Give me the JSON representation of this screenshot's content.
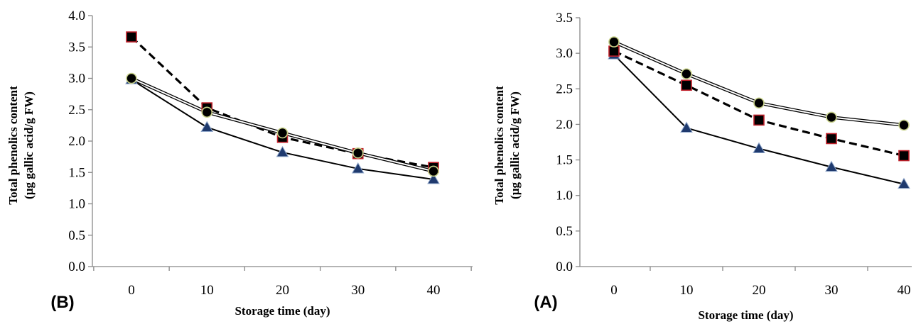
{
  "chart_data": [
    {
      "type": "line",
      "panel_label": "(B)",
      "x": [
        0,
        10,
        20,
        30,
        40
      ],
      "xlabel": "Storage time (day)",
      "ylabel_line1": "Total phenolics content",
      "ylabel_line2": "(µg gallic acid/g FW)",
      "ylim": [
        0,
        4
      ],
      "yticks": [
        "0.0",
        "0.5",
        "1.0",
        "1.5",
        "2.0",
        "2.5",
        "3.0",
        "3.5",
        "4.0"
      ],
      "xticks": [
        "0",
        "10",
        "20",
        "30",
        "40"
      ],
      "grid": false,
      "series": [
        {
          "marker": "triangle",
          "line": "solid",
          "values": [
            2.98,
            2.22,
            1.82,
            1.56,
            1.39
          ]
        },
        {
          "marker": "square",
          "line": "dashed",
          "values": [
            3.66,
            2.53,
            2.06,
            1.8,
            1.58
          ]
        },
        {
          "marker": "circle",
          "line": "double",
          "values": [
            3.0,
            2.46,
            2.13,
            1.81,
            1.52
          ]
        }
      ]
    },
    {
      "type": "line",
      "panel_label": "(A)",
      "x": [
        0,
        10,
        20,
        30,
        40
      ],
      "xlabel": "Storage time (day)",
      "ylabel_line1": "Total phenolics content",
      "ylabel_line2": "(µg gallic acid/g FW)",
      "ylim": [
        0,
        3.5
      ],
      "yticks": [
        "0.0",
        "0.5",
        "1.0",
        "1.5",
        "2.0",
        "2.5",
        "3.0",
        "3.5"
      ],
      "xticks": [
        "0",
        "10",
        "20",
        "30",
        "40"
      ],
      "grid": false,
      "series": [
        {
          "marker": "triangle",
          "line": "solid",
          "values": [
            2.98,
            1.95,
            1.66,
            1.4,
            1.16
          ]
        },
        {
          "marker": "square",
          "line": "dashed",
          "values": [
            3.03,
            2.55,
            2.06,
            1.8,
            1.56
          ]
        },
        {
          "marker": "circle",
          "line": "double",
          "values": [
            3.16,
            2.71,
            2.3,
            2.1,
            1.99
          ]
        }
      ]
    }
  ],
  "colors": {
    "axis": "#888888",
    "line": "#000000",
    "triangle_fill": "#1f3a6e",
    "square_fill": "#000000",
    "square_stroke": "#c0202a",
    "circle_fill": "#000000",
    "circle_stroke": "#c8d28a"
  }
}
